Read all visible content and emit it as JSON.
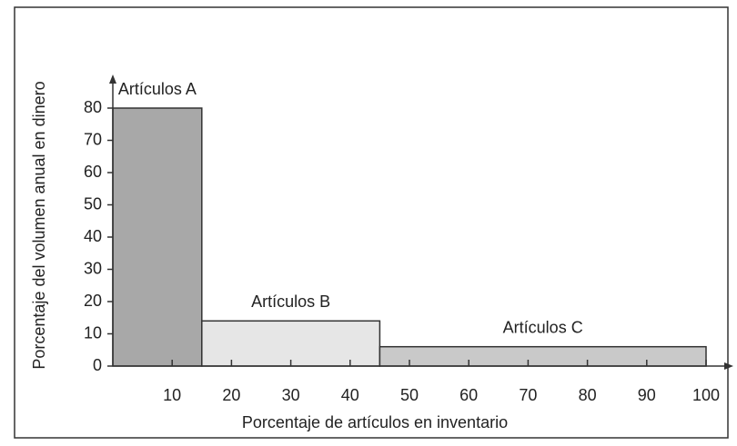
{
  "chart_data": {
    "type": "histogram",
    "xlabel": "Porcentaje de artículos en inventario",
    "ylabel": "Porcentaje del volumen anual en dinero",
    "categories": [
      "Artículos A",
      "Artículos B",
      "Artículos C"
    ],
    "bins": [
      0,
      15,
      45,
      100
    ],
    "values": [
      80,
      14,
      6
    ],
    "colors": [
      "#a8a8a8",
      "#e6e6e6",
      "#c9c9c9"
    ],
    "xlim": [
      0,
      100
    ],
    "ylim": [
      0,
      80
    ],
    "xticks": [
      10,
      20,
      30,
      40,
      50,
      60,
      70,
      80,
      90,
      100
    ],
    "yticks": [
      0,
      10,
      20,
      30,
      40,
      50,
      60,
      70,
      80
    ]
  }
}
